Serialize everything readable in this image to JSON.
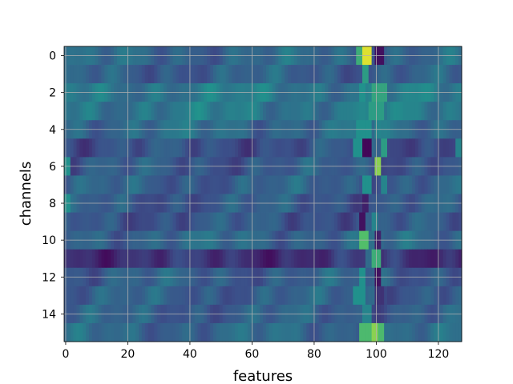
{
  "chart_data": {
    "type": "heatmap",
    "xlabel": "features",
    "ylabel": "channels",
    "x_range": [
      -0.5,
      127.5
    ],
    "y_range": [
      -0.5,
      15.5
    ],
    "y_inverted": true,
    "x_ticks": [
      0,
      20,
      40,
      60,
      80,
      100,
      120
    ],
    "y_ticks": [
      0,
      2,
      4,
      6,
      8,
      10,
      12,
      14
    ],
    "grid": true,
    "colormap": [
      "#440154",
      "#3b528b",
      "#21918c",
      "#5ec962",
      "#fde725"
    ],
    "rows": 16,
    "cols": 128,
    "row_base": [
      0.33,
      0.3,
      0.4,
      0.4,
      0.35,
      0.25,
      0.28,
      0.3,
      0.28,
      0.27,
      0.33,
      0.15,
      0.3,
      0.3,
      0.3,
      0.33
    ],
    "bright_spots": [
      {
        "row": 0,
        "cols": [
          96,
          97,
          98
        ],
        "value": 0.95
      },
      {
        "row": 0,
        "cols": [
          94,
          95
        ],
        "value": 0.62
      },
      {
        "row": 0,
        "cols": [
          100,
          101,
          102
        ],
        "value": 0.05
      },
      {
        "row": 1,
        "cols": [
          96,
          97
        ],
        "value": 0.55
      },
      {
        "row": 2,
        "cols": [
          99,
          100,
          101,
          102,
          103
        ],
        "value": 0.58
      },
      {
        "row": 2,
        "cols": [
          95,
          96
        ],
        "value": 0.5
      },
      {
        "row": 3,
        "cols": [
          98,
          99,
          100,
          101,
          102
        ],
        "value": 0.55
      },
      {
        "row": 4,
        "cols": [
          94,
          95,
          96,
          97,
          98
        ],
        "value": 0.5
      },
      {
        "row": 4,
        "cols": [
          100,
          101
        ],
        "value": 0.45
      },
      {
        "row": 5,
        "cols": [
          96,
          97,
          98
        ],
        "value": 0.02
      },
      {
        "row": 5,
        "cols": [
          93,
          94,
          95
        ],
        "value": 0.5
      },
      {
        "row": 5,
        "cols": [
          102,
          103
        ],
        "value": 0.55
      },
      {
        "row": 5,
        "cols": [
          126,
          127
        ],
        "value": 0.45
      },
      {
        "row": 6,
        "cols": [
          100,
          101
        ],
        "value": 0.82
      },
      {
        "row": 6,
        "cols": [
          0,
          1
        ],
        "value": 0.5
      },
      {
        "row": 7,
        "cols": [
          96,
          97,
          98
        ],
        "value": 0.5
      },
      {
        "row": 7,
        "cols": [
          102,
          103
        ],
        "value": 0.45
      },
      {
        "row": 8,
        "cols": [
          96,
          97
        ],
        "value": 0.1
      },
      {
        "row": 8,
        "cols": [
          0,
          1
        ],
        "value": 0.5
      },
      {
        "row": 9,
        "cols": [
          95,
          96
        ],
        "value": 0.05
      },
      {
        "row": 9,
        "cols": [
          99,
          100
        ],
        "value": 0.45
      },
      {
        "row": 10,
        "cols": [
          95,
          96,
          97
        ],
        "value": 0.7
      },
      {
        "row": 10,
        "cols": [
          100,
          101
        ],
        "value": 0.1
      },
      {
        "row": 11,
        "cols": [
          99,
          100,
          101
        ],
        "value": 0.62
      },
      {
        "row": 11,
        "cols": [
          97,
          98
        ],
        "value": 0.35
      },
      {
        "row": 12,
        "cols": [
          100,
          101
        ],
        "value": 0.05
      },
      {
        "row": 12,
        "cols": [
          95,
          96
        ],
        "value": 0.5
      },
      {
        "row": 13,
        "cols": [
          93,
          94,
          95,
          96
        ],
        "value": 0.5
      },
      {
        "row": 13,
        "cols": [
          100,
          101,
          102
        ],
        "value": 0.15
      },
      {
        "row": 14,
        "cols": [
          96,
          97,
          98
        ],
        "value": 0.45
      },
      {
        "row": 15,
        "cols": [
          95,
          96,
          97,
          98,
          99,
          100,
          101,
          102
        ],
        "value": 0.68
      },
      {
        "row": 15,
        "cols": [
          99,
          100
        ],
        "value": 0.82
      }
    ]
  }
}
